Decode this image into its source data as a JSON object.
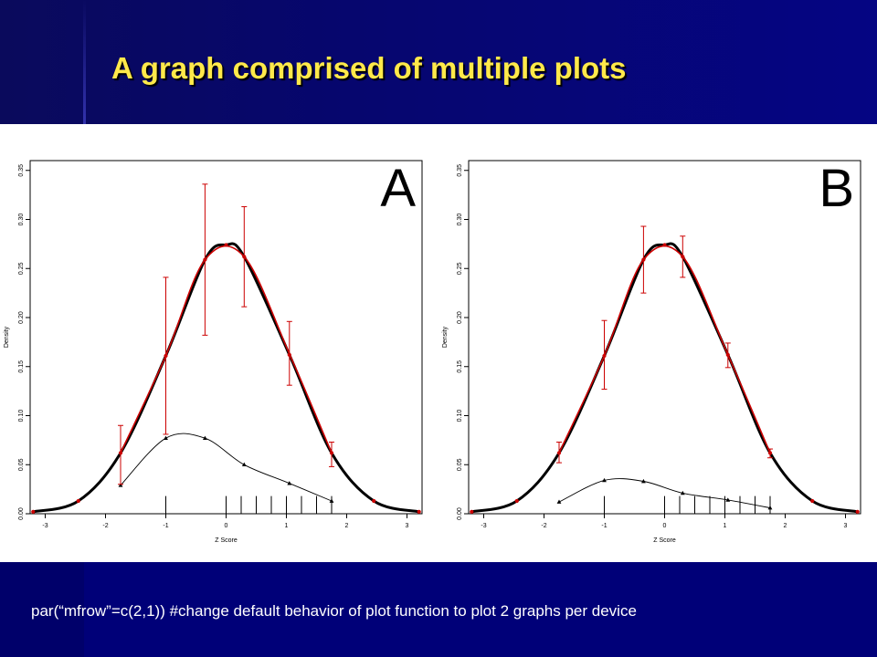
{
  "slide": {
    "title": "A graph comprised of multiple plots",
    "caption": "par(“mfrow”=c(2,1))  #change default behavior of plot function to plot 2 graphs per device"
  },
  "colors": {
    "background": "#00006e",
    "title": "#ffe94a",
    "curve": "#cc0000",
    "panel": "#ffffff"
  },
  "chart_data": [
    {
      "type": "line",
      "panel_label": "A",
      "xlabel": "Z Score",
      "ylabel": "Density",
      "xlim": [
        -3.25,
        3.25
      ],
      "ylim": [
        0,
        0.36
      ],
      "x_ticks": [
        -3,
        -2,
        -1,
        0,
        1,
        2,
        3
      ],
      "y_ticks": [
        0.0,
        0.05,
        0.1,
        0.15,
        0.2,
        0.25,
        0.3,
        0.35
      ],
      "x_tick_labels": [
        "-3",
        "-2",
        "-1",
        "0",
        "1",
        "2",
        "3"
      ],
      "y_tick_labels": [
        "0.00",
        "0.05",
        "0.10",
        "0.15",
        "0.20",
        "0.25",
        "0.30",
        "0.35"
      ],
      "series": [
        {
          "style": "black-line-points",
          "x": [
            -3.2,
            -2.45,
            -1.75,
            -1.0,
            -0.35,
            0.0,
            0.3,
            1.05,
            1.75,
            2.45,
            3.2
          ],
          "y": [
            0.002,
            0.013,
            0.062,
            0.161,
            0.259,
            0.274,
            0.262,
            0.162,
            0.062,
            0.013,
            0.002
          ]
        },
        {
          "style": "red-line-errorbars",
          "x": [
            -1.75,
            -1.0,
            -0.35,
            0.3,
            1.05,
            1.75
          ],
          "y": [
            0.062,
            0.161,
            0.259,
            0.262,
            0.163,
            0.062
          ],
          "err_low": [
            0.03,
            0.081,
            0.182,
            0.211,
            0.131,
            0.048
          ],
          "err_high": [
            0.09,
            0.241,
            0.336,
            0.313,
            0.196,
            0.073
          ]
        },
        {
          "style": "black-thin-triangles",
          "x": [
            -1.75,
            -1.0,
            -0.35,
            0.3,
            1.05,
            1.75
          ],
          "y": [
            0.029,
            0.077,
            0.077,
            0.05,
            0.031,
            0.013
          ]
        }
      ],
      "rug": [
        -1.0,
        0.0,
        0.25,
        0.5,
        0.75,
        1.0,
        1.25,
        1.5,
        1.75
      ]
    },
    {
      "type": "line",
      "panel_label": "B",
      "xlabel": "Z Score",
      "ylabel": "Density",
      "xlim": [
        -3.25,
        3.25
      ],
      "ylim": [
        0,
        0.36
      ],
      "x_ticks": [
        -3,
        -2,
        -1,
        0,
        1,
        2,
        3
      ],
      "y_ticks": [
        0.0,
        0.05,
        0.1,
        0.15,
        0.2,
        0.25,
        0.3,
        0.35
      ],
      "x_tick_labels": [
        "-3",
        "-2",
        "-1",
        "0",
        "1",
        "2",
        "3"
      ],
      "y_tick_labels": [
        "0.00",
        "0.05",
        "0.10",
        "0.15",
        "0.20",
        "0.25",
        "0.30",
        "0.35"
      ],
      "series": [
        {
          "style": "black-line-points",
          "x": [
            -3.2,
            -2.45,
            -1.75,
            -1.0,
            -0.35,
            0.0,
            0.3,
            1.05,
            1.75,
            2.45,
            3.2
          ],
          "y": [
            0.002,
            0.013,
            0.062,
            0.161,
            0.259,
            0.274,
            0.262,
            0.162,
            0.062,
            0.013,
            0.002
          ]
        },
        {
          "style": "red-line-errorbars",
          "x": [
            -1.75,
            -1.0,
            -0.35,
            0.3,
            1.05,
            1.75
          ],
          "y": [
            0.062,
            0.161,
            0.259,
            0.262,
            0.162,
            0.062
          ],
          "err_low": [
            0.052,
            0.127,
            0.225,
            0.241,
            0.149,
            0.057
          ],
          "err_high": [
            0.073,
            0.197,
            0.293,
            0.283,
            0.174,
            0.066
          ]
        },
        {
          "style": "black-thin-triangles",
          "x": [
            -1.75,
            -1.0,
            -0.35,
            0.3,
            1.05,
            1.75
          ],
          "y": [
            0.012,
            0.034,
            0.033,
            0.021,
            0.014,
            0.006
          ]
        }
      ],
      "rug": [
        -1.0,
        0.0,
        0.25,
        0.5,
        0.75,
        1.0,
        1.25,
        1.5,
        1.75
      ]
    }
  ]
}
